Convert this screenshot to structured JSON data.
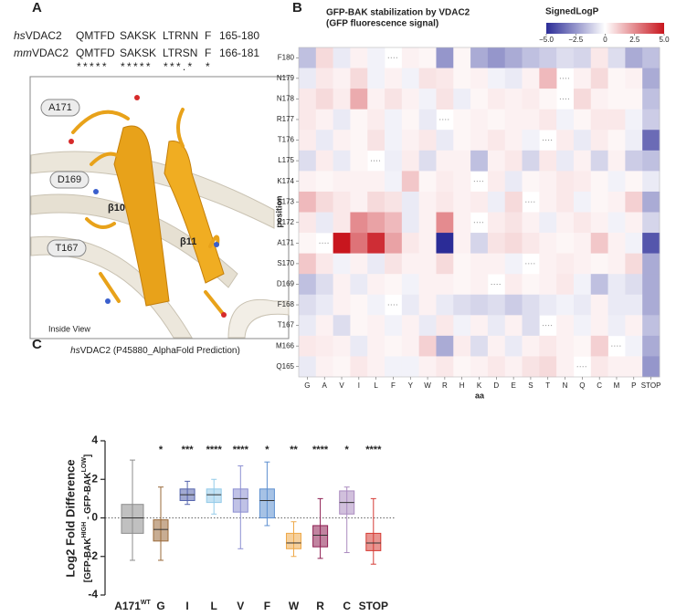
{
  "panel_labels": [
    "A",
    "B",
    "C"
  ],
  "panel_a": {
    "alignment": [
      {
        "species": "hs",
        "protein": "VDAC2",
        "segments": [
          "QMTFD",
          "SAKSK",
          "LTRNN",
          "F"
        ],
        "range": "165-180"
      },
      {
        "species": "mm",
        "protein": "VDAC2",
        "segments": [
          "QMTFD",
          "SAKSK",
          "LTRSN",
          "F"
        ],
        "range": "166-181"
      }
    ],
    "conservation": [
      "*****",
      "*****",
      "***.*",
      "*"
    ],
    "structure_labels": [
      "A171",
      "D169",
      "T167"
    ],
    "strand_labels": [
      "β10",
      "β11"
    ],
    "view_label": "Inside View",
    "caption": {
      "species": "hs",
      "text": "VDAC2 (P45880_AlphaFold Prediction)"
    }
  },
  "chart_data": [
    {
      "type": "heatmap",
      "title": "GFP-BAK stabilization by VDAC2",
      "subtitle": "(GFP fluorescence signal)",
      "legend_title": "SignedLogP",
      "x_label": "aa",
      "y_label": "position",
      "x_categories": [
        "G",
        "A",
        "V",
        "I",
        "L",
        "F",
        "Y",
        "W",
        "R",
        "H",
        "K",
        "D",
        "E",
        "S",
        "T",
        "N",
        "Q",
        "C",
        "M",
        "P",
        "STOP"
      ],
      "y_categories": [
        "F180",
        "N179",
        "N178",
        "R177",
        "T176",
        "L175",
        "K174",
        "S173",
        "K172",
        "A171",
        "S170",
        "D169",
        "F168",
        "T167",
        "M166",
        "Q165"
      ],
      "values": [
        [
          -1.5,
          0.8,
          -0.5,
          0.3,
          -0.3,
          null,
          0.3,
          0.2,
          -2.5,
          0.2,
          -2,
          -2.5,
          -2,
          -1.5,
          -1.2,
          -0.8,
          -1,
          0.5,
          -0.8,
          -2,
          -1.5
        ],
        [
          -0.5,
          0.5,
          0.3,
          0.8,
          -0.3,
          0.3,
          -0.3,
          0.6,
          0.5,
          0.2,
          0.3,
          -0.3,
          -0.5,
          0.3,
          1.5,
          null,
          0.3,
          0.8,
          0.2,
          0.3,
          -2
        ],
        [
          0.5,
          0.8,
          0.4,
          1.8,
          0.3,
          0.6,
          0.3,
          -0.3,
          0.6,
          -0.4,
          0.2,
          0.4,
          0.3,
          0.4,
          0.2,
          null,
          0.8,
          0.3,
          0.2,
          0.2,
          -1.5
        ],
        [
          0.5,
          0.3,
          -0.5,
          0.2,
          0.4,
          -0.3,
          0.2,
          -0.5,
          null,
          0.2,
          0.3,
          0.2,
          0.3,
          0.3,
          0.5,
          -0.3,
          0.2,
          0.5,
          0.5,
          -0.3,
          -1.2
        ],
        [
          0.4,
          -0.5,
          0.3,
          0.2,
          0.6,
          -0.3,
          0.3,
          0.5,
          -0.5,
          0.2,
          0.3,
          0.5,
          0.3,
          -0.3,
          null,
          0.4,
          -0.5,
          0.4,
          0.2,
          -0.4,
          -3.5
        ],
        [
          -0.8,
          0.4,
          -0.5,
          0.2,
          null,
          -0.4,
          0.4,
          -0.8,
          0.3,
          0.3,
          -1.5,
          0.3,
          0.5,
          -1,
          0.5,
          -0.5,
          0.3,
          -1,
          0.3,
          -1.2,
          -1.5
        ],
        [
          0.3,
          0.2,
          0.3,
          0.3,
          0.3,
          -0.3,
          1.2,
          0.2,
          0.4,
          0.3,
          null,
          0.4,
          -0.5,
          0.2,
          0.3,
          0.5,
          0.4,
          0.2,
          -0.3,
          0.2,
          -0.5
        ],
        [
          1.5,
          0.8,
          0.5,
          0.3,
          0.8,
          0.6,
          -0.5,
          0.3,
          0.5,
          0.3,
          0.4,
          -0.4,
          0.8,
          null,
          0.3,
          0.5,
          -0.3,
          0.2,
          0.3,
          1,
          -2
        ],
        [
          0.5,
          -0.5,
          0.5,
          2.5,
          2,
          1.5,
          -0.5,
          0.3,
          2.5,
          0.3,
          null,
          0.4,
          0.6,
          0.3,
          -0.4,
          0.3,
          0.5,
          0.3,
          -0.3,
          0.3,
          -1
        ],
        [
          0.2,
          null,
          5,
          3,
          4.5,
          2,
          0.5,
          0.3,
          -5,
          0.3,
          -1,
          0.6,
          0.8,
          0.5,
          0.3,
          0.2,
          0.3,
          1.2,
          0.3,
          -0.3,
          -4
        ],
        [
          1.2,
          0.5,
          -0.3,
          0.3,
          -0.5,
          0.6,
          0.3,
          0.3,
          0.8,
          0.2,
          0.3,
          0.3,
          -0.3,
          null,
          0.3,
          0.4,
          0.3,
          0.2,
          0.3,
          0.8,
          -2
        ],
        [
          -1.5,
          -0.8,
          0.3,
          -0.5,
          0.3,
          0.2,
          -0.3,
          0.3,
          0.3,
          0.2,
          0.3,
          null,
          0.4,
          0.2,
          0.3,
          0.5,
          -0.3,
          -1.5,
          -0.5,
          -0.8,
          -2
        ],
        [
          -0.8,
          -0.5,
          0.3,
          0.2,
          -0.3,
          null,
          -0.5,
          0.3,
          -0.5,
          -0.8,
          -1,
          -0.8,
          -1.2,
          -0.8,
          -0.5,
          -0.3,
          -0.5,
          0.3,
          -0.5,
          -0.5,
          -2
        ],
        [
          -0.5,
          0.3,
          -0.8,
          0.2,
          0.3,
          -0.3,
          0.3,
          -0.5,
          0.5,
          -0.3,
          0.3,
          -0.5,
          0.3,
          -0.8,
          null,
          0.3,
          -0.3,
          0.3,
          -0.4,
          0.3,
          -1.5
        ],
        [
          0.5,
          0.4,
          0.3,
          -0.5,
          0.3,
          0.2,
          0.3,
          1,
          -2,
          0.4,
          -0.8,
          0.3,
          -0.5,
          0.3,
          0.5,
          0.3,
          0.2,
          1,
          null,
          -0.3,
          -2
        ],
        [
          -0.5,
          0.3,
          0.2,
          0.5,
          0.3,
          -0.3,
          -0.3,
          0.3,
          0.5,
          0.2,
          0.3,
          0.5,
          0.3,
          0.6,
          0.8,
          0.3,
          null,
          0.5,
          0.3,
          0.3,
          -2.5
        ]
      ],
      "clim": [
        -5,
        5
      ],
      "colors": [
        "#2b2c97",
        "#ffffff",
        "#c8161e"
      ],
      "cticks": [
        {
          "value": -5,
          "label": "−5.0"
        },
        {
          "value": -2.5,
          "label": "−2.5"
        },
        0,
        {
          "value": 2.5,
          "label": "2.5"
        },
        {
          "value": 5,
          "label": "5.0"
        }
      ]
    },
    {
      "type": "box",
      "y_label": "Log2 Fold Difference",
      "y_label_parts": [
        "[GFP-BAK",
        "HIGH",
        " - GFP-BAK",
        "LOW",
        "]"
      ],
      "categories": [
        "A171",
        "G",
        "I",
        "L",
        "V",
        "F",
        "W",
        "R",
        "C",
        "STOP"
      ],
      "first_category_superscript": "WT",
      "significance": [
        "*",
        "***",
        "****",
        "****",
        "*",
        "**",
        "****",
        "*",
        "****"
      ],
      "colors": [
        "#8c8c8c",
        "#9a6a3a",
        "#5565ad",
        "#93cbe9",
        "#8c8fd2",
        "#5d8fd0",
        "#eea94a",
        "#8e1f52",
        "#ab8cc0",
        "#d63c35"
      ],
      "boxes": [
        {
          "min": -2.2,
          "q1": -0.8,
          "median": 0,
          "q3": 0.7,
          "max": 3.0
        },
        {
          "min": -2.2,
          "q1": -1.2,
          "median": -0.6,
          "q3": -0.1,
          "max": 1.6
        },
        {
          "min": 0.7,
          "q1": 0.9,
          "median": 1.2,
          "q3": 1.5,
          "max": 1.9
        },
        {
          "min": 0.2,
          "q1": 0.8,
          "median": 1.2,
          "q3": 1.5,
          "max": 2.0
        },
        {
          "min": -1.6,
          "q1": 0.3,
          "median": 1.0,
          "q3": 1.5,
          "max": 2.7
        },
        {
          "min": -0.4,
          "q1": 0,
          "median": 0.9,
          "q3": 1.5,
          "max": 2.9
        },
        {
          "min": -2.0,
          "q1": -1.6,
          "median": -1.3,
          "q3": -0.8,
          "max": -0.2
        },
        {
          "min": -2.1,
          "q1": -1.5,
          "median": -0.9,
          "q3": -0.4,
          "max": 1.0
        },
        {
          "min": -1.8,
          "q1": 0.2,
          "median": 0.8,
          "q3": 1.4,
          "max": 1.6
        },
        {
          "min": -2.4,
          "q1": -1.7,
          "median": -1.3,
          "q3": -0.8,
          "max": 1.0
        }
      ],
      "ylim": [
        -4,
        4
      ],
      "yticks": [
        -4,
        -2,
        0,
        2,
        4
      ]
    }
  ]
}
